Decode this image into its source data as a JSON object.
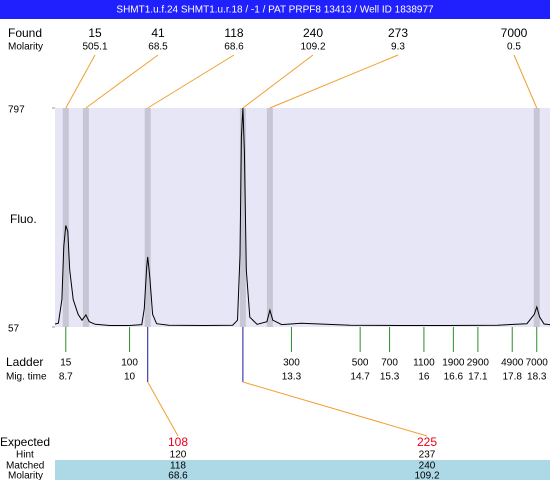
{
  "chart_data": {
    "type": "line",
    "title": "SHMT1.u.f.24  SHMT1.u.r.18 / -1 / PAT PRPF8 13413 / Well ID 1838977",
    "found_label": "Found",
    "found_molarity_label": "Molarity",
    "ylabel": "Fluo.",
    "ladder_label": "Ladder",
    "migtime_label": "Mig. time",
    "expected_label": "Expected",
    "hint_label": "Hint",
    "matched_label": "Matched",
    "expected_molarity_label": "Molarity",
    "ylim": [
      57,
      797
    ],
    "yticks": [
      57,
      797
    ],
    "xlim": [
      8.48,
      18.57
    ],
    "found": {
      "sizes": [
        15,
        41,
        118,
        240,
        273,
        7000
      ],
      "molarity": [
        505.1,
        68.5,
        68.6,
        109.2,
        9.3,
        0.5
      ],
      "x": [
        8.7,
        9.11,
        10.37,
        12.31,
        12.86,
        18.3
      ]
    },
    "ladder": {
      "sizes": [
        15,
        100,
        300,
        500,
        700,
        1100,
        1900,
        2900,
        4900,
        7000
      ],
      "mig_times": [
        8.7,
        10,
        13.3,
        14.7,
        15.3,
        16,
        16.6,
        17.1,
        17.8,
        18.3
      ],
      "color": "#2e8b2e"
    },
    "expected": {
      "values": [
        108,
        225
      ],
      "hint": [
        120,
        237
      ],
      "matched": [
        118,
        240
      ],
      "molarity": [
        68.6,
        109.2
      ],
      "color": "#e8001c"
    },
    "trace": {
      "color": "#000000",
      "x": [
        8.48,
        8.55,
        8.62,
        8.66,
        8.7,
        8.74,
        8.78,
        8.85,
        8.95,
        9.03,
        9.11,
        9.18,
        9.3,
        9.6,
        10.0,
        10.25,
        10.3,
        10.35,
        10.37,
        10.41,
        10.47,
        10.55,
        10.8,
        11.5,
        12.1,
        12.2,
        12.25,
        12.28,
        12.31,
        12.34,
        12.38,
        12.45,
        12.6,
        12.8,
        12.86,
        12.92,
        13.1,
        13.5,
        14.0,
        14.5,
        15.5,
        16.5,
        17.5,
        18.1,
        18.25,
        18.3,
        18.36,
        18.45,
        18.57
      ],
      "values": [
        67,
        70,
        150,
        330,
        400,
        380,
        250,
        150,
        100,
        80,
        98,
        75,
        66,
        62,
        62,
        65,
        120,
        260,
        294,
        230,
        100,
        68,
        63,
        62,
        63,
        80,
        300,
        700,
        797,
        650,
        250,
        90,
        66,
        75,
        114,
        80,
        65,
        70,
        66,
        63,
        62,
        62,
        63,
        68,
        100,
        125,
        90,
        67,
        65
      ]
    }
  }
}
